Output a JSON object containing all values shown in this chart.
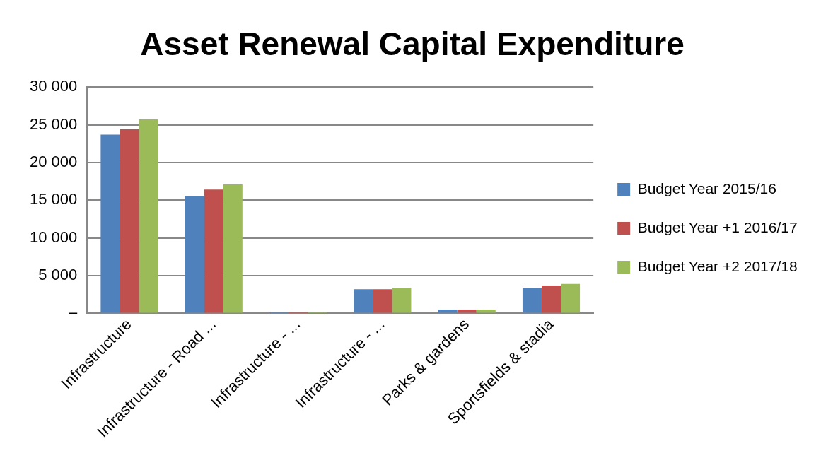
{
  "chart_data": {
    "type": "bar",
    "title": "Asset Renewal Capital Expenditure",
    "categories": [
      "Infrastructure",
      "Infrastructure - Road ...",
      "Infrastructure - ...",
      "Infrastructure - ...",
      "Parks & gardens",
      "Sportsfields & stadia"
    ],
    "series": [
      {
        "name": "Budget Year 2015/16",
        "color": "#4f81bd",
        "values": [
          23700,
          15600,
          200,
          3200,
          500,
          3400
        ]
      },
      {
        "name": "Budget Year +1 2016/17",
        "color": "#c0504d",
        "values": [
          24400,
          16400,
          200,
          3200,
          500,
          3700
        ]
      },
      {
        "name": "Budget Year +2 2017/18",
        "color": "#9bbb59",
        "values": [
          25700,
          17100,
          200,
          3400,
          500,
          3900
        ]
      }
    ],
    "ylim": [
      0,
      30000
    ],
    "yticks": [
      {
        "value": 0,
        "label": "–"
      },
      {
        "value": 5000,
        "label": "5 000"
      },
      {
        "value": 10000,
        "label": "10 000"
      },
      {
        "value": 15000,
        "label": "15 000"
      },
      {
        "value": 20000,
        "label": "20 000"
      },
      {
        "value": 25000,
        "label": "25 000"
      },
      {
        "value": 30000,
        "label": "30 000"
      }
    ],
    "grid": "y",
    "legend": "right"
  }
}
